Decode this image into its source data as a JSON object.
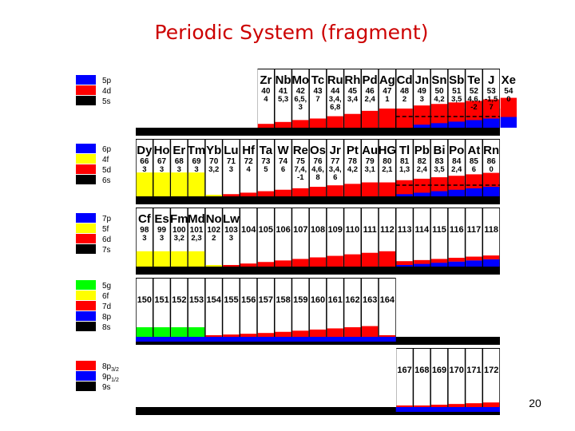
{
  "title": "Periodic System (fragment)",
  "slide_number": "20",
  "colors": {
    "s": "#0000ff",
    "p": "#0000ff",
    "d": "#ff0000",
    "f": "#ffff00",
    "g": "#00ff00",
    "dark": "#000000",
    "panel": "#ffffff"
  },
  "legend_groups": [
    [
      {
        "label": "5p",
        "color": "p"
      },
      {
        "label": "4d",
        "color": "d"
      },
      {
        "label": "5s",
        "color": "dark"
      }
    ],
    [
      {
        "label": "6p",
        "color": "p"
      },
      {
        "label": "4f",
        "color": "f"
      },
      {
        "label": "5d",
        "color": "d"
      },
      {
        "label": "6s",
        "color": "dark"
      }
    ],
    [
      {
        "label": "7p",
        "color": "p"
      },
      {
        "label": "5f",
        "color": "f"
      },
      {
        "label": "6d",
        "color": "d"
      },
      {
        "label": "7s",
        "color": "dark"
      }
    ],
    [
      {
        "label": "5g",
        "color": "g"
      },
      {
        "label": "6f",
        "color": "f"
      },
      {
        "label": "7d",
        "color": "d"
      },
      {
        "label": "8p",
        "color": "p"
      },
      {
        "label": "8s",
        "color": "dark"
      }
    ],
    [
      {
        "label": "8p",
        "sub": "3/2",
        "color": "d"
      },
      {
        "label": "9p",
        "sub": "1/2",
        "color": "p"
      },
      {
        "label": "9s",
        "color": "dark"
      }
    ]
  ],
  "rows": [
    {
      "cells": [
        {},
        {},
        {},
        {},
        {},
        {},
        {},
        {
          "sym": "Zr",
          "z": "40",
          "ox": [
            "4"
          ],
          "fill": [
            {
              "c": "d",
              "v": 0.1
            }
          ]
        },
        {
          "sym": "Nb",
          "z": "41",
          "ox": [
            "5,3"
          ],
          "fill": [
            {
              "c": "d",
              "v": 0.15
            }
          ]
        },
        {
          "sym": "Mo",
          "z": "42",
          "ox": [
            "6,5,",
            "3"
          ],
          "fill": [
            {
              "c": "d",
              "v": 0.2
            }
          ]
        },
        {
          "sym": "Tc",
          "z": "43",
          "ox": [
            "7"
          ],
          "fill": [
            {
              "c": "d",
              "v": 0.24
            }
          ]
        },
        {
          "sym": "Ru",
          "z": "44",
          "ox": [
            "3,4,",
            "6,8"
          ],
          "fill": [
            {
              "c": "d",
              "v": 0.3
            }
          ]
        },
        {
          "sym": "Rh",
          "z": "45",
          "ox": [
            "3,4"
          ],
          "fill": [
            {
              "c": "d",
              "v": 0.36
            }
          ]
        },
        {
          "sym": "Pd",
          "z": "46",
          "ox": [
            "2,4"
          ],
          "fill": [
            {
              "c": "d",
              "v": 0.44
            }
          ]
        },
        {
          "sym": "Ag",
          "z": "47",
          "ox": [
            "1"
          ],
          "fill": [
            {
              "c": "d",
              "v": 0.5
            }
          ]
        },
        {
          "sym": "Cd",
          "z": "48",
          "ox": [
            "2"
          ],
          "fill": [
            {
              "c": "d",
              "v": 0.5
            }
          ]
        },
        {
          "sym": "Jn",
          "z": "49",
          "ox": [
            "3"
          ],
          "fill": [
            {
              "c": "d",
              "v": 0.5
            },
            {
              "c": "p",
              "v": 0.08
            }
          ]
        },
        {
          "sym": "Sn",
          "z": "50",
          "ox": [
            "4,2"
          ],
          "fill": [
            {
              "c": "d",
              "v": 0.5
            },
            {
              "c": "p",
              "v": 0.12
            }
          ]
        },
        {
          "sym": "Sb",
          "z": "51",
          "ox": [
            "3,5"
          ],
          "fill": [
            {
              "c": "d",
              "v": 0.5
            },
            {
              "c": "p",
              "v": 0.16
            }
          ]
        },
        {
          "sym": "Te",
          "z": "52",
          "ox": [
            "4,6,",
            "-2"
          ],
          "fill": [
            {
              "c": "d",
              "v": 0.5
            },
            {
              "c": "p",
              "v": 0.2
            }
          ]
        },
        {
          "sym": "J",
          "z": "53",
          "ox": [
            "-1,5",
            "7"
          ],
          "fill": [
            {
              "c": "d",
              "v": 0.5
            },
            {
              "c": "p",
              "v": 0.24
            }
          ]
        },
        {
          "sym": "Xe",
          "z": "54",
          "ox": [
            "0"
          ],
          "fill": [
            {
              "c": "d",
              "v": 0.5
            },
            {
              "c": "p",
              "v": 0.28
            }
          ]
        }
      ]
    },
    {
      "cells": [
        {
          "sym": "Dy",
          "z": "66",
          "ox": [
            "3"
          ],
          "fill": [
            {
              "c": "f",
              "v": 0.65
            }
          ]
        },
        {
          "sym": "Ho",
          "z": "67",
          "ox": [
            "3"
          ],
          "fill": [
            {
              "c": "f",
              "v": 0.65
            }
          ]
        },
        {
          "sym": "Er",
          "z": "68",
          "ox": [
            "3"
          ],
          "fill": [
            {
              "c": "f",
              "v": 0.65
            }
          ]
        },
        {
          "sym": "Tm",
          "z": "69",
          "ox": [
            "3"
          ],
          "fill": [
            {
              "c": "f",
              "v": 0.65
            }
          ]
        },
        {
          "sym": "Yb",
          "z": "70",
          "ox": [
            "3,2"
          ],
          "fill": [
            {
              "c": "f",
              "v": 0.02
            }
          ]
        },
        {
          "sym": "Lu",
          "z": "71",
          "ox": [
            "3"
          ],
          "fill": [
            {
              "c": "d",
              "v": 0.06
            }
          ]
        },
        {
          "sym": "Hf",
          "z": "72",
          "ox": [
            "4"
          ],
          "fill": [
            {
              "c": "d",
              "v": 0.1
            }
          ]
        },
        {
          "sym": "Ta",
          "z": "73",
          "ox": [
            "5"
          ],
          "fill": [
            {
              "c": "d",
              "v": 0.14
            }
          ]
        },
        {
          "sym": "W",
          "z": "74",
          "ox": [
            "6"
          ],
          "fill": [
            {
              "c": "d",
              "v": 0.18
            }
          ]
        },
        {
          "sym": "Re",
          "z": "75",
          "ox": [
            "7,4,",
            "-1"
          ],
          "fill": [
            {
              "c": "d",
              "v": 0.22
            }
          ]
        },
        {
          "sym": "Os",
          "z": "76",
          "ox": [
            "4,6,",
            "8"
          ],
          "fill": [
            {
              "c": "d",
              "v": 0.26
            }
          ]
        },
        {
          "sym": "Jr",
          "z": "77",
          "ox": [
            "3,4,",
            "6"
          ],
          "fill": [
            {
              "c": "d",
              "v": 0.3
            }
          ]
        },
        {
          "sym": "Pt",
          "z": "78",
          "ox": [
            "4,2"
          ],
          "fill": [
            {
              "c": "d",
              "v": 0.34
            }
          ]
        },
        {
          "sym": "Au",
          "z": "79",
          "ox": [
            "3,1"
          ],
          "fill": [
            {
              "c": "d",
              "v": 0.38
            }
          ]
        },
        {
          "sym": "HG",
          "z": "80",
          "ox": [
            "2,1"
          ],
          "fill": [
            {
              "c": "d",
              "v": 0.38
            }
          ]
        },
        {
          "sym": "Tl",
          "z": "81",
          "ox": [
            "1,3"
          ],
          "fill": [
            {
              "c": "d",
              "v": 0.38
            },
            {
              "c": "p",
              "v": 0.06
            }
          ]
        },
        {
          "sym": "Pb",
          "z": "82",
          "ox": [
            "2,4"
          ],
          "fill": [
            {
              "c": "d",
              "v": 0.38
            },
            {
              "c": "p",
              "v": 0.1
            }
          ]
        },
        {
          "sym": "Bi",
          "z": "83",
          "ox": [
            "3,5"
          ],
          "fill": [
            {
              "c": "d",
              "v": 0.38
            },
            {
              "c": "p",
              "v": 0.14
            }
          ]
        },
        {
          "sym": "Po",
          "z": "84",
          "ox": [
            "2,4"
          ],
          "fill": [
            {
              "c": "d",
              "v": 0.38
            },
            {
              "c": "p",
              "v": 0.18
            }
          ]
        },
        {
          "sym": "At",
          "z": "85",
          "ox": [
            "6"
          ],
          "fill": [
            {
              "c": "d",
              "v": 0.38
            },
            {
              "c": "p",
              "v": 0.22
            }
          ]
        },
        {
          "sym": "Rn",
          "z": "86",
          "ox": [
            "0"
          ],
          "fill": [
            {
              "c": "d",
              "v": 0.38
            },
            {
              "c": "p",
              "v": 0.26
            }
          ]
        }
      ]
    },
    {
      "cells": [
        {
          "sym": "Cf",
          "z": "98",
          "ox": [
            "3"
          ],
          "fill": [
            {
              "c": "f",
              "v": 0.4
            }
          ]
        },
        {
          "sym": "Es",
          "z": "99",
          "ox": [
            "3"
          ],
          "fill": [
            {
              "c": "f",
              "v": 0.4
            }
          ]
        },
        {
          "sym": "Fm",
          "z": "100",
          "ox": [
            "3,2"
          ],
          "fill": [
            {
              "c": "f",
              "v": 0.4
            }
          ]
        },
        {
          "sym": "Md",
          "z": "101",
          "ox": [
            "2,3"
          ],
          "fill": [
            {
              "c": "f",
              "v": 0.4
            }
          ]
        },
        {
          "sym": "No",
          "z": "102",
          "ox": [
            "2"
          ],
          "fill": [
            {
              "c": "f",
              "v": 0.02
            }
          ]
        },
        {
          "sym": "Lw",
          "z": "103",
          "ox": [
            "3"
          ],
          "fill": [
            {
              "c": "d",
              "v": 0.04
            }
          ]
        },
        {
          "z": "104",
          "fill": [
            {
              "c": "d",
              "v": 0.08
            }
          ]
        },
        {
          "z": "105",
          "fill": [
            {
              "c": "d",
              "v": 0.12
            }
          ]
        },
        {
          "z": "106",
          "fill": [
            {
              "c": "d",
              "v": 0.16
            }
          ]
        },
        {
          "z": "107",
          "fill": [
            {
              "c": "d",
              "v": 0.2
            }
          ]
        },
        {
          "z": "108",
          "fill": [
            {
              "c": "d",
              "v": 0.24
            }
          ]
        },
        {
          "z": "109",
          "fill": [
            {
              "c": "d",
              "v": 0.28
            }
          ]
        },
        {
          "z": "110",
          "fill": [
            {
              "c": "d",
              "v": 0.32
            }
          ]
        },
        {
          "z": "111",
          "fill": [
            {
              "c": "d",
              "v": 0.36
            }
          ]
        },
        {
          "z": "112",
          "fill": [
            {
              "c": "d",
              "v": 0.4
            }
          ]
        },
        {
          "z": "113",
          "fill": [
            {
              "c": "d",
              "v": 0.1
            },
            {
              "c": "p",
              "v": 0.04
            }
          ]
        },
        {
          "z": "114",
          "fill": [
            {
              "c": "d",
              "v": 0.1
            },
            {
              "c": "p",
              "v": 0.07
            }
          ]
        },
        {
          "z": "115",
          "fill": [
            {
              "c": "d",
              "v": 0.1
            },
            {
              "c": "p",
              "v": 0.1
            }
          ]
        },
        {
          "z": "116",
          "fill": [
            {
              "c": "d",
              "v": 0.1
            },
            {
              "c": "p",
              "v": 0.13
            }
          ]
        },
        {
          "z": "117",
          "fill": [
            {
              "c": "d",
              "v": 0.1
            },
            {
              "c": "p",
              "v": 0.16
            }
          ]
        },
        {
          "z": "118",
          "fill": [
            {
              "c": "d",
              "v": 0.1
            },
            {
              "c": "p",
              "v": 0.19
            }
          ]
        }
      ]
    },
    {
      "cells": [
        {
          "z": "150",
          "fill": [
            {
              "c": "g",
              "v": 0.25
            }
          ]
        },
        {
          "z": "151",
          "fill": [
            {
              "c": "g",
              "v": 0.25
            }
          ]
        },
        {
          "z": "152",
          "fill": [
            {
              "c": "g",
              "v": 0.25
            }
          ]
        },
        {
          "z": "153",
          "fill": [
            {
              "c": "g",
              "v": 0.25
            }
          ]
        },
        {
          "z": "154",
          "fill": [
            {
              "c": "d",
              "v": 0.04
            }
          ]
        },
        {
          "z": "155",
          "fill": [
            {
              "c": "d",
              "v": 0.06
            }
          ]
        },
        {
          "z": "156",
          "fill": [
            {
              "c": "d",
              "v": 0.08
            }
          ]
        },
        {
          "z": "157",
          "fill": [
            {
              "c": "d",
              "v": 0.1
            }
          ]
        },
        {
          "z": "158",
          "fill": [
            {
              "c": "d",
              "v": 0.13
            }
          ]
        },
        {
          "z": "159",
          "fill": [
            {
              "c": "d",
              "v": 0.16
            }
          ]
        },
        {
          "z": "160",
          "fill": [
            {
              "c": "d",
              "v": 0.19
            }
          ]
        },
        {
          "z": "161",
          "fill": [
            {
              "c": "d",
              "v": 0.22
            }
          ]
        },
        {
          "z": "162",
          "fill": [
            {
              "c": "d",
              "v": 0.25
            }
          ]
        },
        {
          "z": "163",
          "fill": [
            {
              "c": "d",
              "v": 0.28
            }
          ]
        },
        {
          "z": "164",
          "fill": [
            {
              "c": "d",
              "v": 0.02
            }
          ]
        },
        {},
        {},
        {},
        {},
        {},
        {}
      ]
    },
    {
      "cells": [
        {},
        {},
        {},
        {},
        {},
        {},
        {},
        {},
        {},
        {},
        {},
        {},
        {},
        {},
        {},
        {
          "z": "167",
          "fill": [
            {
              "c": "d",
              "v": 0.02
            }
          ]
        },
        {
          "z": "168",
          "fill": [
            {
              "c": "d",
              "v": 0.04
            }
          ]
        },
        {
          "z": "169",
          "fill": [
            {
              "c": "d",
              "v": 0.06
            }
          ]
        },
        {
          "z": "170",
          "fill": [
            {
              "c": "d",
              "v": 0.08
            }
          ]
        },
        {
          "z": "171",
          "fill": [
            {
              "c": "d",
              "v": 0.1
            }
          ]
        },
        {
          "z": "172",
          "fill": [
            {
              "c": "d",
              "v": 0.12
            }
          ]
        }
      ]
    }
  ]
}
